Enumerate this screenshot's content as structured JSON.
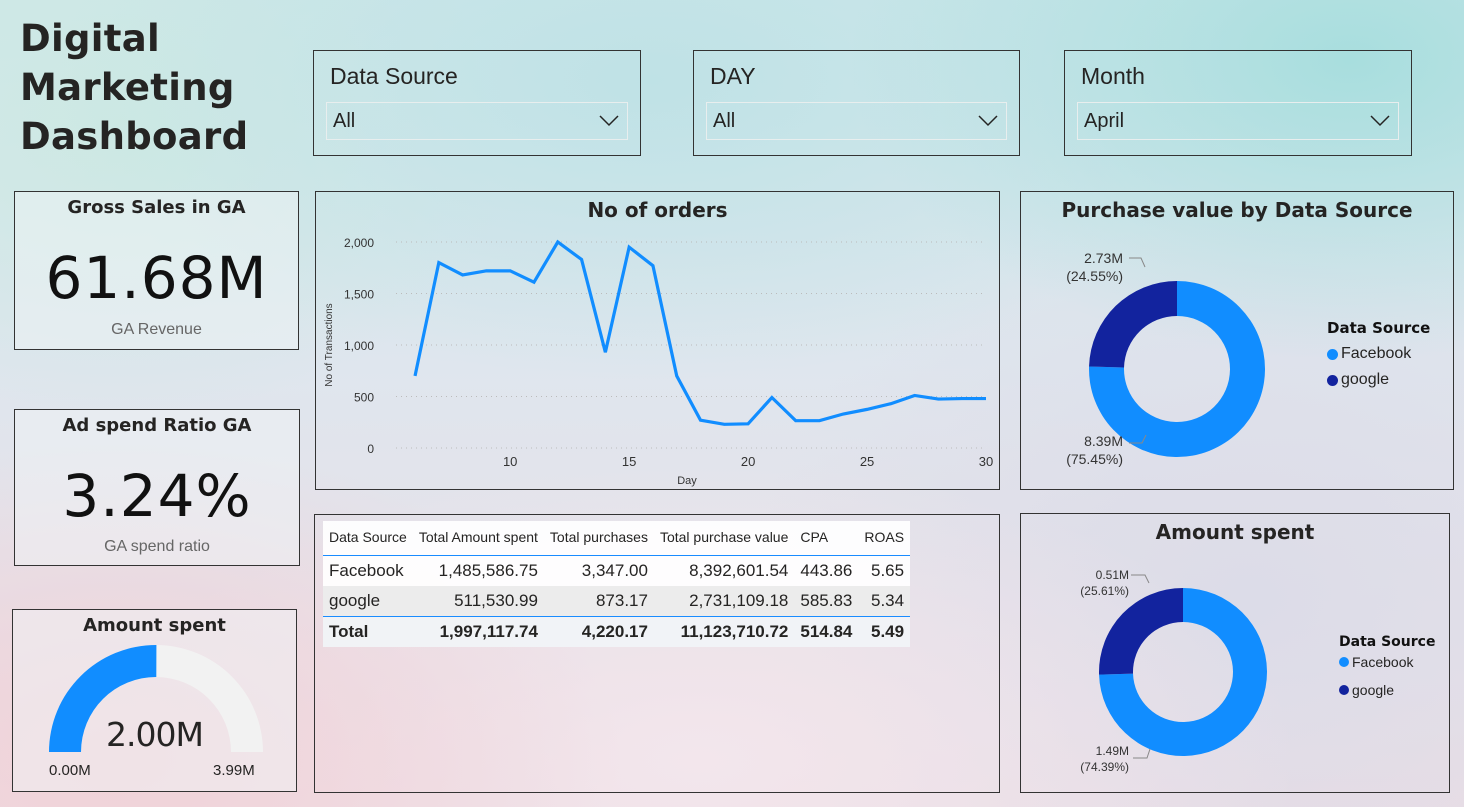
{
  "header": {
    "title_lines": [
      "Digital",
      "Marketing",
      "Dashboard"
    ]
  },
  "colors": {
    "facebook": "#118DFF",
    "google": "#12239E",
    "gauge_track": "#F2F2F2",
    "table_accent": "#1A8CFF"
  },
  "slicers": [
    {
      "label": "Data Source",
      "value": "All",
      "icon": "chevron-down-icon"
    },
    {
      "label": "DAY",
      "value": "All",
      "icon": "chevron-down-icon"
    },
    {
      "label": "Month",
      "value": "April",
      "icon": "chevron-down-icon"
    }
  ],
  "kpis": {
    "gross_sales": {
      "title": "Gross Sales in GA",
      "value": "61.68M",
      "subtitle": "GA Revenue"
    },
    "ad_spend_ratio": {
      "title": "Ad spend Ratio GA",
      "value": "3.24%",
      "subtitle": "GA spend ratio"
    }
  },
  "gauge": {
    "title": "Amount spent",
    "value_label": "2.00M",
    "min_label": "0.00M",
    "max_label": "3.99M",
    "value": 2.0,
    "min": 0.0,
    "max": 3.99
  },
  "table": {
    "columns": [
      "Data Source",
      "Total Amount spent",
      "Total purchases",
      "Total purchase value",
      "CPA",
      "ROAS"
    ],
    "rows": [
      [
        "Facebook",
        "1,485,586.75",
        "3,347.00",
        "8,392,601.54",
        "443.86",
        "5.65"
      ],
      [
        "google",
        "511,530.99",
        "873.17",
        "2,731,109.18",
        "585.83",
        "5.34"
      ]
    ],
    "total": [
      "Total",
      "1,997,117.74",
      "4,220.17",
      "11,123,710.72",
      "514.84",
      "5.49"
    ]
  },
  "chart_data": [
    {
      "id": "orders",
      "type": "line",
      "title": "No of orders",
      "xlabel": "Day",
      "ylabel": "No of Transactions",
      "x": [
        6,
        7,
        8,
        9,
        10,
        11,
        12,
        13,
        14,
        15,
        16,
        17,
        18,
        19,
        20,
        21,
        22,
        23,
        24,
        25,
        26,
        27,
        28,
        29,
        30
      ],
      "series": [
        {
          "name": "No of Transactions",
          "values": [
            700,
            1800,
            1680,
            1720,
            1720,
            1610,
            2000,
            1830,
            930,
            1950,
            1770,
            700,
            270,
            230,
            235,
            490,
            265,
            265,
            330,
            375,
            430,
            510,
            475,
            480,
            480
          ]
        }
      ],
      "xlim": [
        5.2,
        30
      ],
      "ylim": [
        0,
        2000
      ],
      "xticks": [
        10,
        15,
        20,
        25,
        30
      ],
      "xtick_labels": [
        "10",
        "15",
        "20",
        "25",
        "30"
      ],
      "yticks": [
        0,
        500,
        1000,
        1500,
        2000
      ],
      "ytick_labels": [
        "0",
        "500",
        "1,000",
        "1,500",
        "2,000"
      ],
      "grid": true,
      "color": "#118DFF"
    },
    {
      "id": "purchase_value",
      "type": "pie",
      "donut": true,
      "title": "Purchase value by Data Source",
      "legend_title": "Data Source",
      "legend_position": "right",
      "categories": [
        "Facebook",
        "google"
      ],
      "values": [
        8.39,
        2.73
      ],
      "percent": [
        75.45,
        24.55
      ],
      "labels": [
        {
          "value": "8.39M",
          "percent": "(75.45%)"
        },
        {
          "value": "2.73M",
          "percent": "(24.55%)"
        }
      ],
      "unit": "M"
    },
    {
      "id": "amount_spent",
      "type": "pie",
      "donut": true,
      "title": "Amount spent",
      "legend_title": "Data Source",
      "legend_position": "right",
      "categories": [
        "Facebook",
        "google"
      ],
      "values": [
        1.49,
        0.51
      ],
      "percent": [
        74.39,
        25.61
      ],
      "labels": [
        {
          "value": "1.49M",
          "percent": "(74.39%)"
        },
        {
          "value": "0.51M",
          "percent": "(25.61%)"
        }
      ],
      "unit": "M"
    }
  ]
}
